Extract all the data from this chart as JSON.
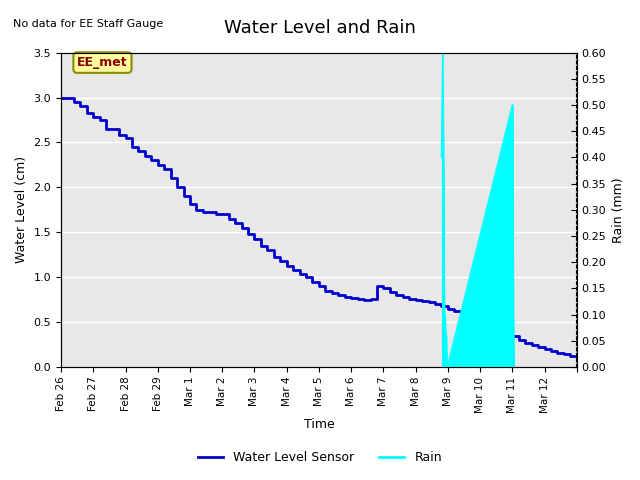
{
  "title": "Water Level and Rain",
  "subtitle": "No data for EE Staff Gauge",
  "xlabel": "Time",
  "ylabel_left": "Water Level (cm)",
  "ylabel_right": "Rain (mm)",
  "legend_label_water": "Water Level Sensor",
  "legend_label_rain": "Rain",
  "annotation_label": "EE_met",
  "water_color": "#0000CC",
  "rain_color": "#00FFFF",
  "background_color": "#FFFFFF",
  "plot_bg_color": "#E8E8E8",
  "ylim_left": [
    0.0,
    3.5
  ],
  "ylim_right": [
    0.0,
    0.6
  ],
  "yticks_left": [
    0.0,
    0.5,
    1.0,
    1.5,
    2.0,
    2.5,
    3.0,
    3.5
  ],
  "yticks_right": [
    0.0,
    0.05,
    0.1,
    0.15,
    0.2,
    0.25,
    0.3,
    0.35,
    0.4,
    0.45,
    0.5,
    0.55,
    0.6
  ],
  "water_x": [
    0,
    0.2,
    0.4,
    0.6,
    0.8,
    1.0,
    1.2,
    1.4,
    1.6,
    1.8,
    2.0,
    2.2,
    2.4,
    2.6,
    2.8,
    3.0,
    3.2,
    3.4,
    3.6,
    3.8,
    4.0,
    4.2,
    4.4,
    4.6,
    4.8,
    5.0,
    5.2,
    5.4,
    5.6,
    5.8,
    6.0,
    6.2,
    6.4,
    6.6,
    6.8,
    7.0,
    7.2,
    7.4,
    7.6,
    7.8,
    8.0,
    8.2,
    8.4,
    8.6,
    8.8,
    9.0,
    9.2,
    9.4,
    9.6,
    9.8,
    10.0,
    10.2,
    10.4,
    10.6,
    10.8,
    11.0,
    11.2,
    11.4,
    11.6,
    11.8,
    12.0,
    12.2,
    12.4,
    12.6,
    12.8,
    13.0,
    13.2,
    13.4,
    13.6,
    13.8,
    14.0,
    14.2,
    14.4,
    14.6,
    14.8,
    15.0,
    15.2,
    15.4,
    15.6,
    15.8,
    16.0
  ],
  "water_y": [
    3.0,
    3.0,
    2.95,
    2.9,
    2.83,
    2.78,
    2.75,
    2.65,
    2.65,
    2.58,
    2.55,
    2.45,
    2.4,
    2.35,
    2.3,
    2.25,
    2.2,
    2.1,
    2.0,
    1.9,
    1.82,
    1.75,
    1.72,
    1.72,
    1.7,
    1.7,
    1.65,
    1.6,
    1.55,
    1.48,
    1.42,
    1.35,
    1.3,
    1.22,
    1.18,
    1.12,
    1.08,
    1.03,
    1.0,
    0.95,
    0.9,
    0.85,
    0.82,
    0.8,
    0.78,
    0.77,
    0.76,
    0.75,
    0.76,
    0.9,
    0.88,
    0.84,
    0.8,
    0.78,
    0.76,
    0.75,
    0.73,
    0.72,
    0.7,
    0.68,
    0.65,
    0.62,
    0.6,
    0.57,
    0.55,
    0.52,
    0.5,
    0.47,
    0.43,
    0.38,
    0.35,
    0.3,
    0.27,
    0.25,
    0.22,
    0.2,
    0.18,
    0.16,
    0.14,
    0.12,
    0.1
  ],
  "rain_x": [
    11.8,
    11.82,
    11.84,
    11.86,
    11.88,
    11.9,
    11.92,
    11.94,
    11.96,
    11.98,
    14.0,
    14.02,
    14.04,
    14.06
  ],
  "rain_y": [
    0.4,
    0.5,
    0.6,
    0.5,
    0.35,
    0.1,
    0.1,
    0.06,
    0.06,
    0.0,
    0.5,
    0.5,
    0.1,
    0.0
  ],
  "xtick_positions": [
    0,
    1,
    2,
    3,
    4,
    5,
    6,
    7,
    8,
    9,
    10,
    11,
    12,
    13,
    14,
    15,
    16
  ],
  "xtick_labels": [
    "Feb 26",
    "Feb 27",
    "Feb 28",
    "Feb 29",
    "Mar 1",
    "Mar 2",
    "Mar 3",
    "Mar 4",
    "Mar 5",
    "Mar 6",
    "Mar 7",
    "Mar 8",
    "Mar 9",
    "Mar 10",
    "Mar 11",
    "Mar 12",
    ""
  ]
}
